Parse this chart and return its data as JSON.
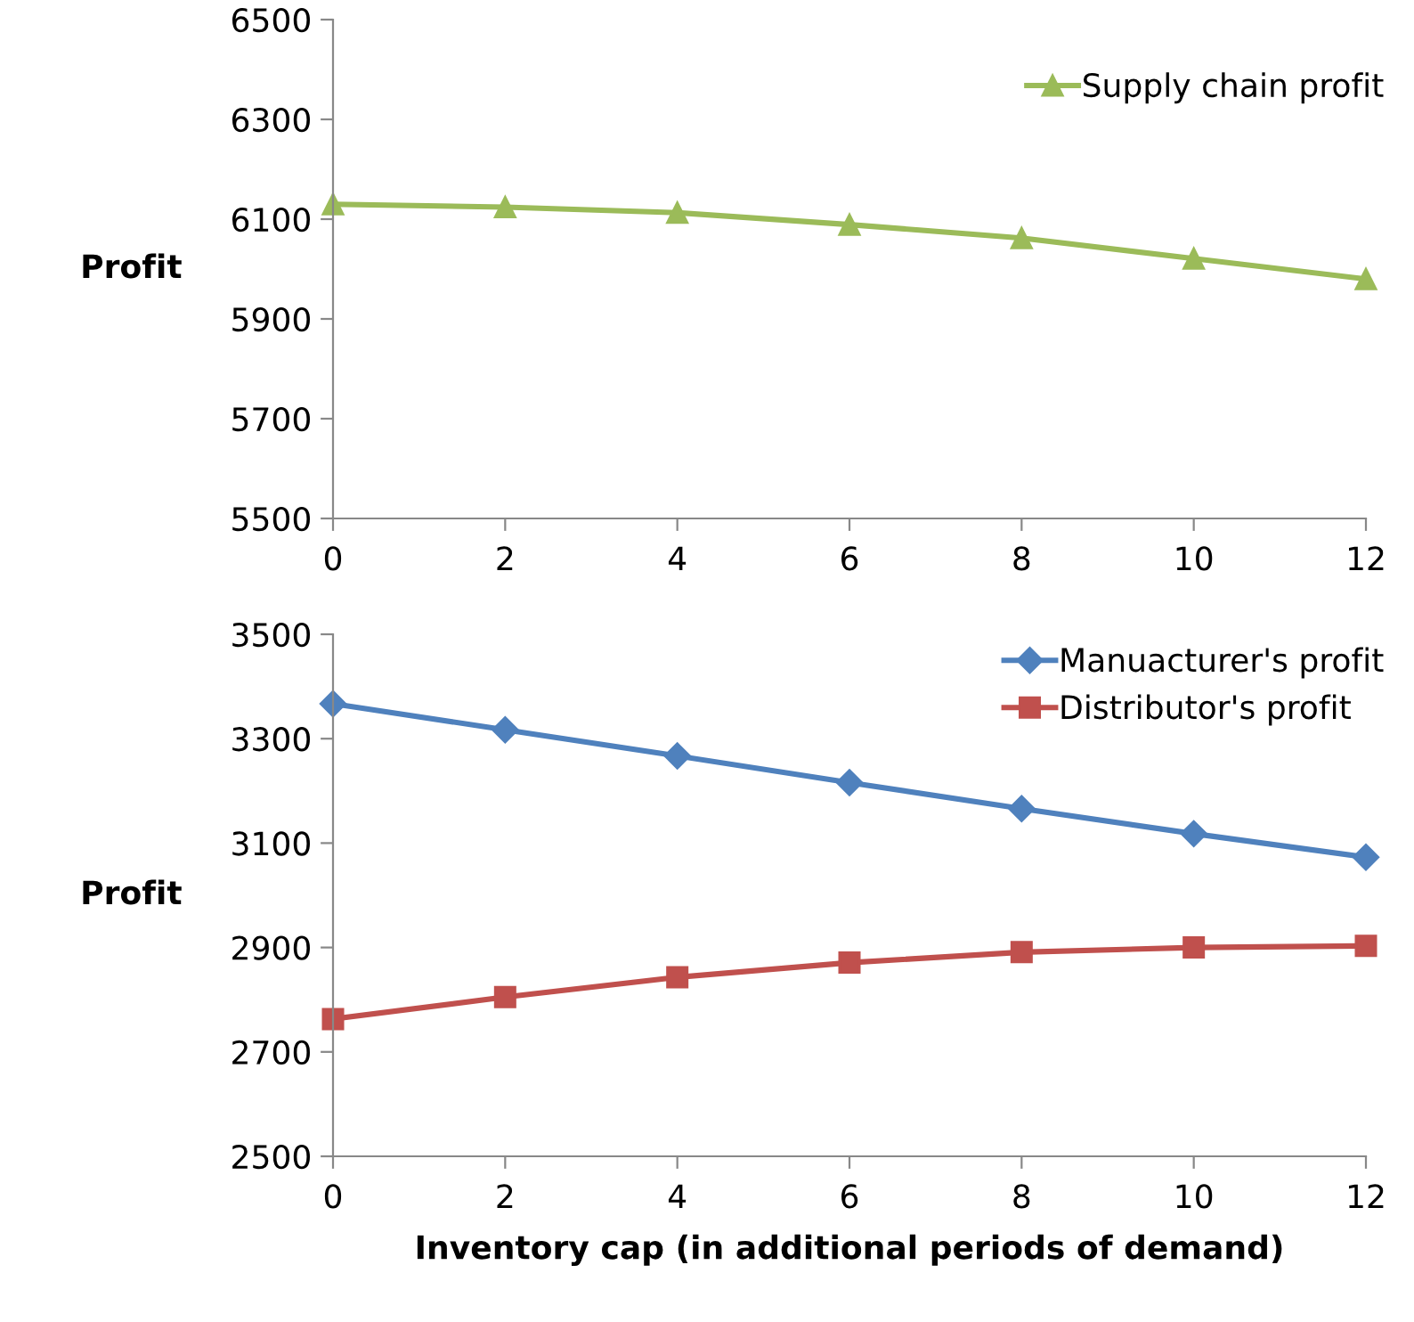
{
  "chart_data": [
    {
      "type": "line",
      "ylabel": "Profit",
      "x": [
        0,
        2,
        4,
        6,
        8,
        10,
        12
      ],
      "xlim": [
        0,
        12
      ],
      "xticks": [
        0,
        2,
        4,
        6,
        8,
        10,
        12
      ],
      "ylim": [
        5500,
        6500
      ],
      "yticks": [
        5500,
        5700,
        5900,
        6100,
        6300,
        6500
      ],
      "grid": false,
      "legend": "top right",
      "marker": "triangle",
      "line_style": "solid",
      "series": [
        {
          "name": "Supply chain profit",
          "color": "#9bbb59",
          "values": [
            6130,
            6124,
            6113,
            6089,
            6062,
            6021,
            5980
          ]
        }
      ]
    },
    {
      "type": "line",
      "ylabel": "Profit",
      "xlabel": "Inventory cap (in additional periods of demand)",
      "x": [
        0,
        2,
        4,
        6,
        8,
        10,
        12
      ],
      "xlim": [
        0,
        12
      ],
      "xticks": [
        0,
        2,
        4,
        6,
        8,
        10,
        12
      ],
      "ylim": [
        2500,
        3500
      ],
      "yticks": [
        2500,
        2700,
        2900,
        3100,
        3300,
        3500
      ],
      "grid": false,
      "legend": "top right",
      "line_style": "solid",
      "series": [
        {
          "name": "Manuacturer's profit",
          "color": "#4f81bd",
          "marker": "diamond",
          "values": [
            3367,
            3317,
            3267,
            3216,
            3166,
            3118,
            3073
          ]
        },
        {
          "name": "Distributor's profit",
          "color": "#c0504d",
          "marker": "square",
          "values": [
            2763,
            2805,
            2843,
            2871,
            2891,
            2900,
            2903
          ]
        }
      ]
    }
  ]
}
